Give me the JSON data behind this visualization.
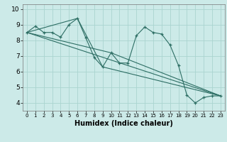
{
  "xlabel": "Humidex (Indice chaleur)",
  "background_color": "#cceae8",
  "grid_color": "#aad4d0",
  "line_color": "#2d6e64",
  "xlim": [
    -0.5,
    23.5
  ],
  "ylim": [
    3.5,
    10.3
  ],
  "xticks": [
    0,
    1,
    2,
    3,
    4,
    5,
    6,
    7,
    8,
    9,
    10,
    11,
    12,
    13,
    14,
    15,
    16,
    17,
    18,
    19,
    20,
    21,
    22,
    23
  ],
  "yticks": [
    4,
    5,
    6,
    7,
    8,
    9,
    10
  ],
  "line1_x": [
    0,
    1,
    2,
    3,
    4,
    5,
    6,
    7,
    8,
    9,
    10,
    11,
    12,
    13,
    14,
    15,
    16,
    17,
    18,
    19,
    20,
    21,
    22,
    23
  ],
  "line1_y": [
    8.5,
    8.9,
    8.5,
    8.5,
    8.2,
    9.0,
    9.4,
    8.15,
    6.9,
    6.3,
    7.2,
    6.55,
    6.55,
    8.3,
    8.85,
    8.5,
    8.4,
    7.7,
    6.4,
    4.5,
    4.0,
    4.35,
    4.45,
    4.45
  ],
  "line2_x": [
    0,
    23
  ],
  "line2_y": [
    8.5,
    4.45
  ],
  "line3_x": [
    0,
    10,
    23
  ],
  "line3_y": [
    8.5,
    7.2,
    4.45
  ],
  "line4_x": [
    0,
    6,
    9,
    23
  ],
  "line4_y": [
    8.5,
    9.4,
    6.3,
    4.45
  ]
}
